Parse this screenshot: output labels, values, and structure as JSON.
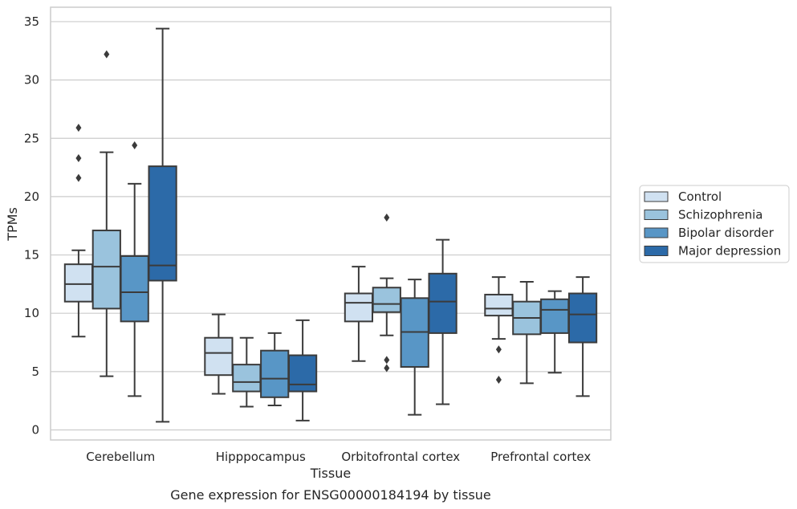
{
  "chart_data": {
    "type": "box",
    "title": "",
    "caption": "Gene expression for ENSG00000184194 by tissue",
    "xlabel": "Tissue",
    "ylabel": "TPMs",
    "ylim": [
      -0.8,
      36
    ],
    "yticks": [
      "0",
      "5",
      "10",
      "15",
      "20",
      "25",
      "30",
      "35"
    ],
    "grid": "horizontal",
    "legend_position": "right",
    "categories": [
      "Cerebellum",
      "Hipppocampus",
      "Orbitofrontal cortex",
      "Prefrontal cortex"
    ],
    "series": [
      {
        "name": "Control",
        "color": "#d0e1f1",
        "boxes": [
          {
            "whislo": 8.0,
            "q1": 11.0,
            "med": 12.5,
            "q3": 14.2,
            "whishi": 15.4,
            "fliers": [
              21.6,
              23.3,
              25.9
            ]
          },
          {
            "whislo": 3.1,
            "q1": 4.7,
            "med": 6.6,
            "q3": 7.9,
            "whishi": 9.9,
            "fliers": []
          },
          {
            "whislo": 5.9,
            "q1": 9.3,
            "med": 10.9,
            "q3": 11.7,
            "whishi": 14.0,
            "fliers": []
          },
          {
            "whislo": 7.8,
            "q1": 9.8,
            "med": 10.4,
            "q3": 11.6,
            "whishi": 13.1,
            "fliers": [
              4.3,
              6.9
            ]
          }
        ]
      },
      {
        "name": "Schizophrenia",
        "color": "#9ac3dd",
        "boxes": [
          {
            "whislo": 4.6,
            "q1": 10.4,
            "med": 14.0,
            "q3": 17.1,
            "whishi": 23.8,
            "fliers": [
              32.2
            ]
          },
          {
            "whislo": 2.0,
            "q1": 3.3,
            "med": 4.1,
            "q3": 5.6,
            "whishi": 7.9,
            "fliers": []
          },
          {
            "whislo": 8.1,
            "q1": 10.1,
            "med": 10.8,
            "q3": 12.2,
            "whishi": 13.0,
            "fliers": [
              5.3,
              6.0,
              18.2
            ]
          },
          {
            "whislo": 4.0,
            "q1": 8.2,
            "med": 9.6,
            "q3": 11.0,
            "whishi": 12.7,
            "fliers": []
          }
        ]
      },
      {
        "name": "Bipolar disorder",
        "color": "#5896c6",
        "boxes": [
          {
            "whislo": 2.9,
            "q1": 9.3,
            "med": 11.8,
            "q3": 14.9,
            "whishi": 21.1,
            "fliers": [
              24.4
            ]
          },
          {
            "whislo": 2.1,
            "q1": 2.8,
            "med": 4.4,
            "q3": 6.8,
            "whishi": 8.3,
            "fliers": []
          },
          {
            "whislo": 1.3,
            "q1": 5.4,
            "med": 8.4,
            "q3": 11.3,
            "whishi": 12.9,
            "fliers": []
          },
          {
            "whislo": 4.9,
            "q1": 8.3,
            "med": 10.3,
            "q3": 11.2,
            "whishi": 11.9,
            "fliers": []
          }
        ]
      },
      {
        "name": "Major depression",
        "color": "#2c6aa8",
        "boxes": [
          {
            "whislo": 0.7,
            "q1": 12.8,
            "med": 14.1,
            "q3": 22.6,
            "whishi": 34.4,
            "fliers": []
          },
          {
            "whislo": 0.8,
            "q1": 3.3,
            "med": 3.9,
            "q3": 6.4,
            "whishi": 9.4,
            "fliers": []
          },
          {
            "whislo": 2.2,
            "q1": 8.3,
            "med": 11.0,
            "q3": 13.4,
            "whishi": 16.3,
            "fliers": []
          },
          {
            "whislo": 2.9,
            "q1": 7.5,
            "med": 9.9,
            "q3": 11.7,
            "whishi": 13.1,
            "fliers": []
          }
        ]
      }
    ]
  }
}
